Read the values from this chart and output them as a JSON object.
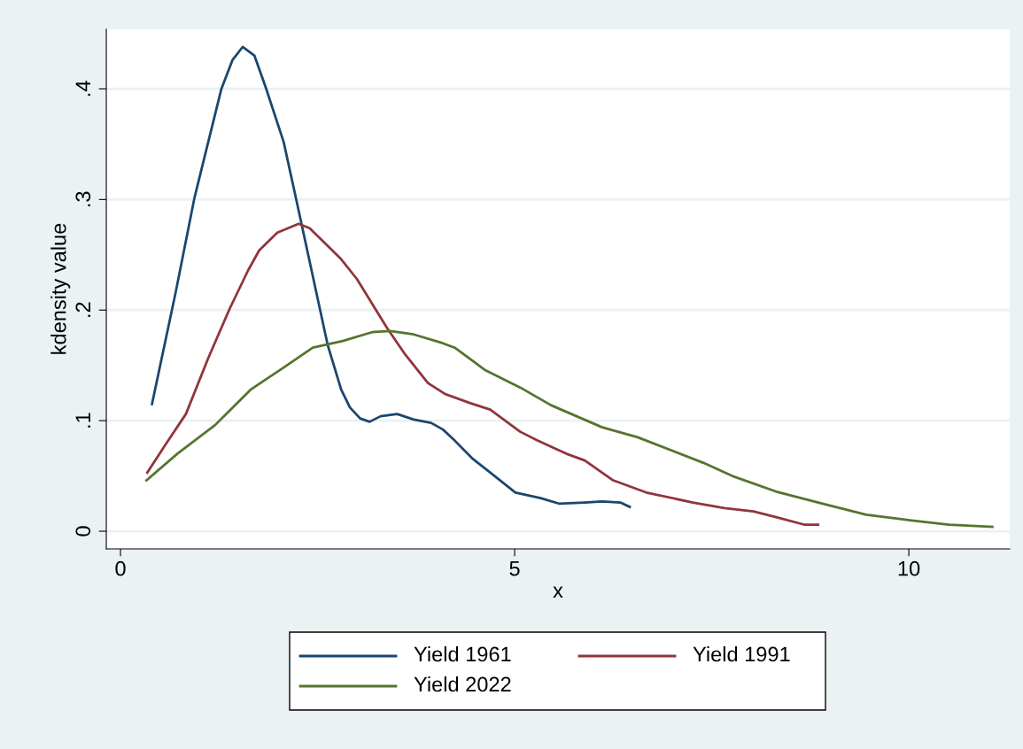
{
  "chart_data": {
    "type": "line",
    "xlabel": "x",
    "ylabel": "kdensity value",
    "xlim": [
      -0.18,
      11.28
    ],
    "xticks": [
      0,
      5,
      10
    ],
    "ylim": [
      -0.016,
      0.454
    ],
    "yticks": [
      {
        "value": 0,
        "label": "0"
      },
      {
        "value": 0.1,
        "label": ".1"
      },
      {
        "value": 0.2,
        "label": ".2"
      },
      {
        "value": 0.3,
        "label": ".3"
      },
      {
        "value": 0.4,
        "label": ".4"
      }
    ],
    "grid": "y",
    "legend": "bottom",
    "marker": "none",
    "line_style": "solid",
    "series": [
      {
        "name": "Yield 1961",
        "color": "#1a476f",
        "x": [
          0.4,
          0.7,
          0.94,
          1.28,
          1.42,
          1.55,
          1.7,
          1.84,
          2.07,
          2.26,
          2.46,
          2.63,
          2.8,
          2.91,
          3.04,
          3.16,
          3.3,
          3.51,
          3.72,
          3.94,
          4.09,
          4.24,
          4.46,
          4.71,
          5.01,
          5.33,
          5.56,
          5.89,
          6.11,
          6.34,
          6.46
        ],
        "values": [
          0.115,
          0.216,
          0.302,
          0.4,
          0.426,
          0.438,
          0.43,
          0.402,
          0.352,
          0.29,
          0.224,
          0.168,
          0.128,
          0.112,
          0.102,
          0.099,
          0.104,
          0.106,
          0.101,
          0.098,
          0.092,
          0.082,
          0.066,
          0.052,
          0.035,
          0.03,
          0.025,
          0.026,
          0.027,
          0.026,
          0.022
        ]
      },
      {
        "name": "Yield 1991",
        "color": "#90353b",
        "x": [
          0.34,
          0.55,
          0.83,
          1.11,
          1.39,
          1.62,
          1.76,
          1.99,
          2.26,
          2.4,
          2.6,
          2.8,
          3.0,
          3.19,
          3.38,
          3.61,
          3.9,
          4.12,
          4.43,
          4.69,
          5.07,
          5.29,
          5.66,
          5.89,
          6.25,
          6.67,
          7.26,
          7.66,
          8.03,
          8.36,
          8.67,
          8.85
        ],
        "values": [
          0.053,
          0.076,
          0.106,
          0.156,
          0.202,
          0.236,
          0.254,
          0.27,
          0.278,
          0.274,
          0.26,
          0.246,
          0.228,
          0.206,
          0.184,
          0.16,
          0.134,
          0.124,
          0.116,
          0.11,
          0.09,
          0.082,
          0.07,
          0.064,
          0.046,
          0.035,
          0.026,
          0.021,
          0.018,
          0.012,
          0.006,
          0.006
        ]
      },
      {
        "name": "Yield 2022",
        "color": "#55752f",
        "x": [
          0.33,
          0.72,
          1.2,
          1.65,
          2.07,
          2.44,
          2.82,
          3.19,
          3.42,
          3.72,
          4.09,
          4.24,
          4.62,
          5.07,
          5.46,
          6.11,
          6.56,
          7.39,
          7.76,
          8.31,
          8.96,
          9.46,
          10.01,
          10.51,
          11.06
        ],
        "values": [
          0.046,
          0.07,
          0.096,
          0.128,
          0.148,
          0.166,
          0.172,
          0.18,
          0.181,
          0.178,
          0.17,
          0.166,
          0.146,
          0.13,
          0.114,
          0.094,
          0.085,
          0.062,
          0.05,
          0.036,
          0.024,
          0.015,
          0.01,
          0.006,
          0.004
        ]
      }
    ]
  }
}
